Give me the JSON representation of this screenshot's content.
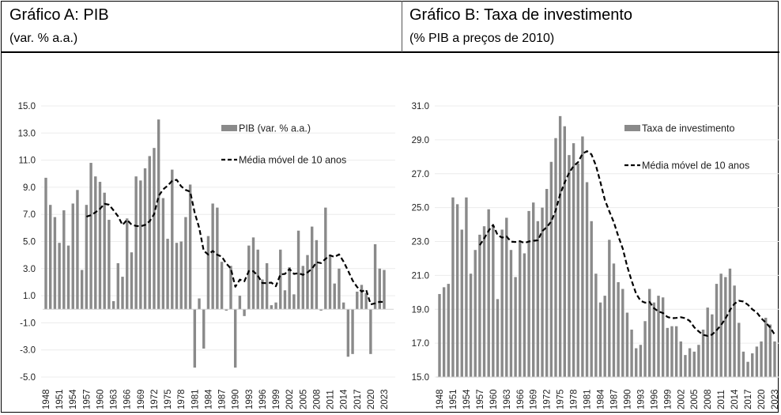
{
  "header": {
    "chart_a_title": "Gráfico A: PIB",
    "chart_a_subtitle": "(var. % a.a.)",
    "chart_b_title": "Gráfico B: Taxa de investimento",
    "chart_b_subtitle": "(% PIB a preços de 2010)"
  },
  "colors": {
    "bar": "#8a8a8a",
    "line": "#000000",
    "grid": "#ececec"
  },
  "chart_data": [
    {
      "type": "bar",
      "title": "Gráfico A: PIB",
      "subtitle": "(var. % a.a.)",
      "ylim": [
        -5,
        15
      ],
      "yticks": [
        "15.0",
        "13.0",
        "11.0",
        "9.0",
        "7.0",
        "5.0",
        "3.0",
        "1.0",
        "-1.0",
        "-3.0",
        "-5.0"
      ],
      "ytick_values": [
        15,
        13,
        11,
        9,
        7,
        5,
        3,
        1,
        -1,
        -3,
        -5
      ],
      "baseline": 0,
      "x_start": 1948,
      "xtick_labels": [
        "1948",
        "1951",
        "1954",
        "1957",
        "1960",
        "1963",
        "1966",
        "1969",
        "1972",
        "1975",
        "1978",
        "1981",
        "1984",
        "1987",
        "1990",
        "1993",
        "1996",
        "1999",
        "2002",
        "2005",
        "2008",
        "2011",
        "2014",
        "2017",
        "2020",
        "2023"
      ],
      "legend": [
        "PIB (var. % a.a.)",
        "Média móvel de 10 anos"
      ],
      "legend_position": "top-right",
      "moving_average_window": 10,
      "series": [
        {
          "name": "PIB (var. % a.a.)",
          "values": [
            9.7,
            7.7,
            6.8,
            4.9,
            7.3,
            4.7,
            7.8,
            8.8,
            2.9,
            7.7,
            10.8,
            9.8,
            9.4,
            8.6,
            6.6,
            0.6,
            3.4,
            2.4,
            6.7,
            4.2,
            9.8,
            9.5,
            10.4,
            11.3,
            11.9,
            14.0,
            8.2,
            5.2,
            10.3,
            4.9,
            5.0,
            6.8,
            9.2,
            -4.3,
            0.8,
            -2.9,
            5.4,
            7.8,
            7.5,
            3.5,
            -0.1,
            3.2,
            -4.3,
            1.0,
            -0.5,
            4.7,
            5.3,
            4.4,
            2.2,
            3.4,
            0.3,
            0.5,
            4.4,
            1.4,
            3.1,
            1.1,
            5.8,
            3.2,
            4.0,
            6.1,
            5.1,
            -0.1,
            7.5,
            4.0,
            1.9,
            3.0,
            0.5,
            -3.5,
            -3.3,
            1.3,
            1.8,
            1.2,
            -3.3,
            4.8,
            3.0,
            2.9
          ]
        }
      ]
    },
    {
      "type": "bar",
      "title": "Gráfico B: Taxa de investimento",
      "subtitle": "(% PIB a preços de 2010)",
      "ylim": [
        15,
        31
      ],
      "yticks": [
        "31.0",
        "29.0",
        "27.0",
        "25.0",
        "23.0",
        "21.0",
        "19.0",
        "17.0",
        "15.0"
      ],
      "ytick_values": [
        31,
        29,
        27,
        25,
        23,
        21,
        19,
        17,
        15
      ],
      "baseline": 15,
      "x_start": 1948,
      "xtick_labels": [
        "1948",
        "1951",
        "1954",
        "1957",
        "1960",
        "1963",
        "1966",
        "1969",
        "1972",
        "1975",
        "1978",
        "1981",
        "1984",
        "1987",
        "1990",
        "1993",
        "1996",
        "1999",
        "2002",
        "2005",
        "2008",
        "2011",
        "2014",
        "2017",
        "2020",
        "2023"
      ],
      "legend": [
        "Taxa de investimento",
        "Média móvel de 10 anos"
      ],
      "legend_position": "top-right",
      "moving_average_window": 10,
      "series": [
        {
          "name": "Taxa de investimento",
          "values": [
            19.9,
            20.3,
            20.5,
            25.6,
            25.2,
            23.7,
            25.6,
            21.1,
            22.5,
            23.4,
            23.9,
            24.9,
            23.9,
            19.6,
            23.7,
            24.4,
            22.5,
            20.9,
            23.0,
            22.3,
            24.8,
            25.3,
            24.2,
            25.0,
            26.1,
            27.7,
            29.1,
            30.4,
            29.8,
            28.1,
            28.8,
            27.6,
            29.2,
            26.5,
            24.2,
            21.1,
            19.4,
            19.8,
            23.1,
            21.7,
            20.6,
            20.2,
            18.8,
            17.8,
            16.7,
            16.9,
            18.3,
            20.2,
            19.4,
            19.8,
            19.7,
            17.9,
            18.0,
            18.0,
            17.1,
            16.3,
            16.7,
            16.5,
            16.9,
            17.8,
            19.1,
            18.7,
            20.5,
            21.1,
            20.9,
            21.4,
            20.4,
            18.2,
            16.5,
            15.9,
            16.4,
            16.8,
            17.1,
            18.5,
            18.1,
            17.1
          ]
        }
      ]
    }
  ]
}
